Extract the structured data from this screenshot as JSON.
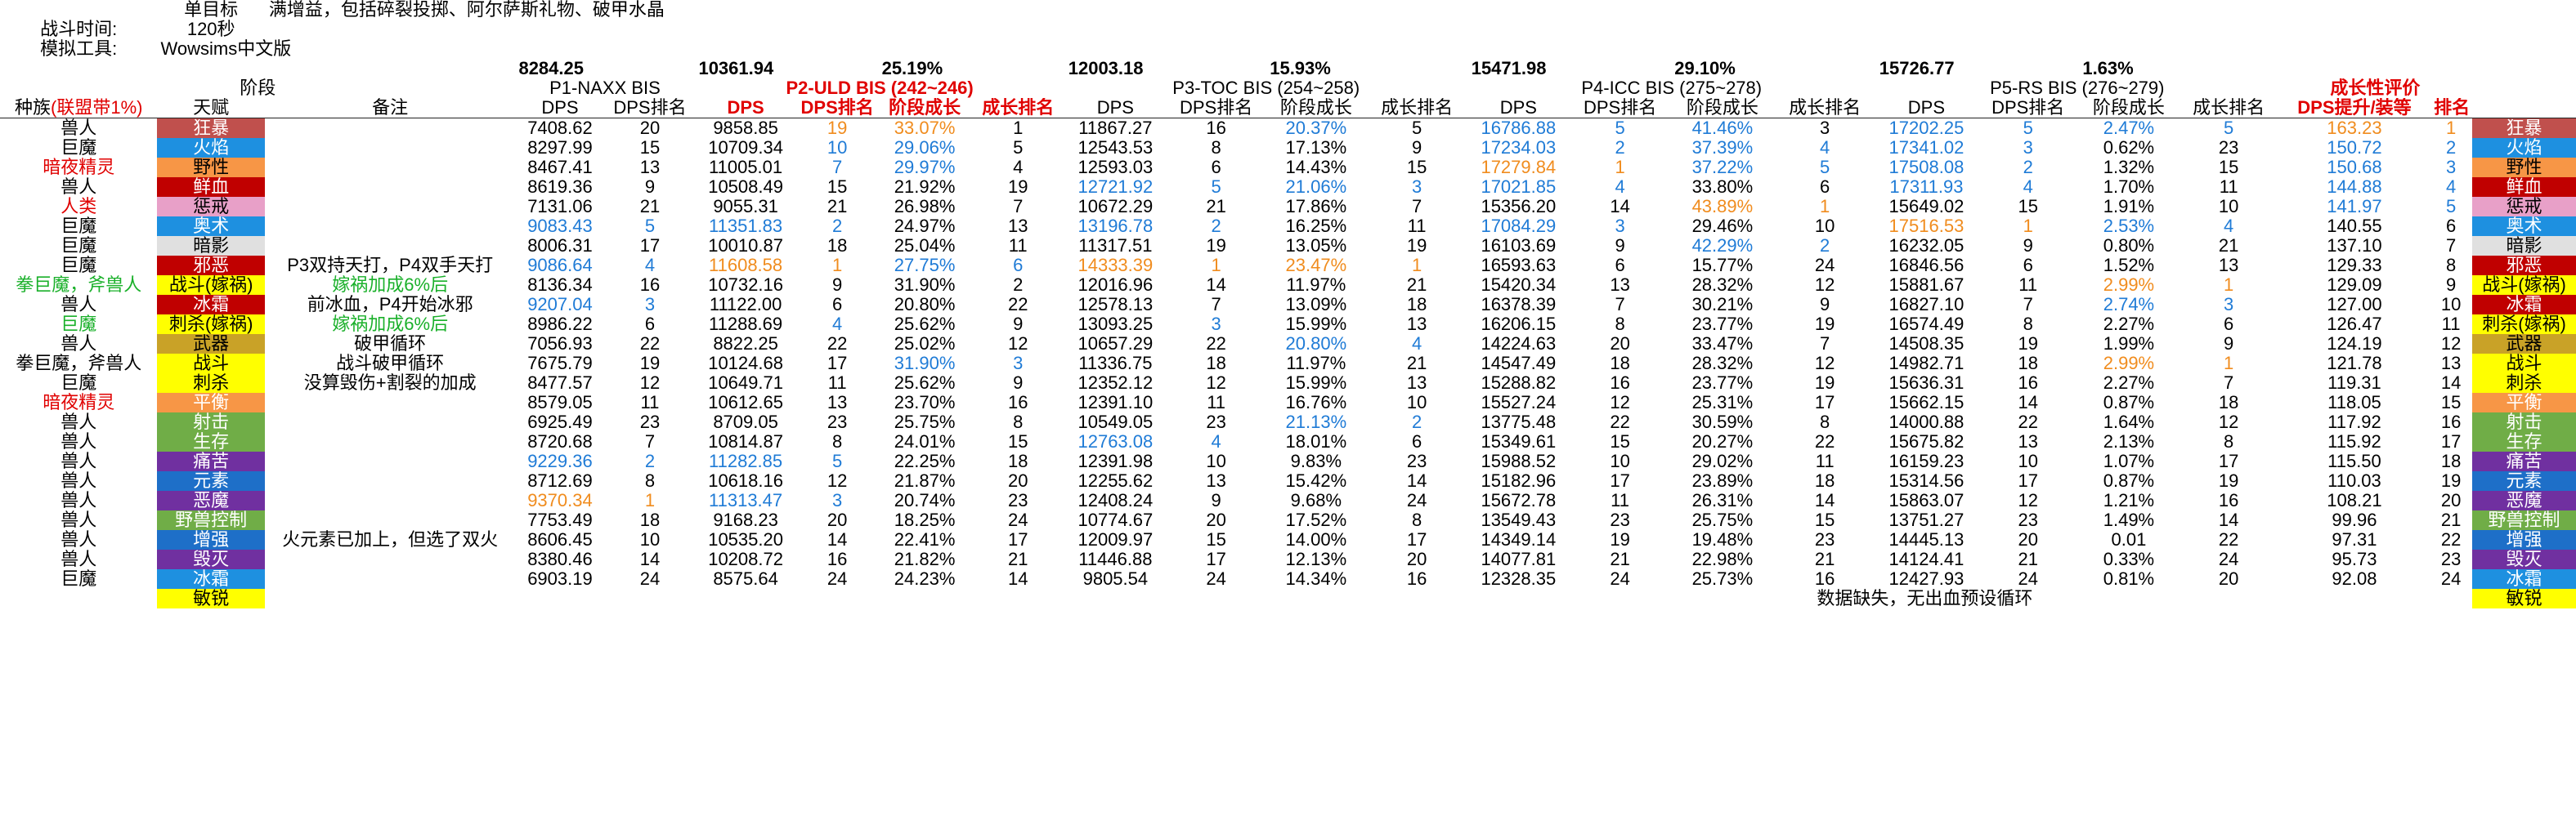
{
  "meta": {
    "target_label": "单目标",
    "target_value": "满增益，包括碎裂投掷、阿尔萨斯礼物、破甲水晶",
    "time_label": "战斗时间:",
    "time_value": "120秒",
    "tool_label": "模拟工具:",
    "tool_value": "Wowsims中文版"
  },
  "summary": [
    "8284.25",
    "10361.94",
    "25.19%",
    "12003.18",
    "15.93%",
    "15471.98",
    "29.10%",
    "15726.77",
    "1.63%"
  ],
  "headers": {
    "stage": "阶段",
    "p1": "P1-NAXX BIS",
    "p2": "P2-ULD BIS (242~246)",
    "p3": "P3-TOC BIS  (254~258)",
    "p4": "P4-ICC BIS (275~278)",
    "p5": "P5-RS BIS (276~279)",
    "growth": "成长性评价",
    "race_prefix": "种族",
    "race_suffix": "(联盟带1%)",
    "talent": "天赋",
    "notes": "备注",
    "dps": "DPS",
    "dps_rank": "DPS排名",
    "stage_growth": "阶段成长",
    "growth_rank": "成长排名",
    "dps_per_gear": "DPS提升/装等",
    "rank": "排名"
  },
  "colors": {
    "red": "#e00000",
    "blue": "#1f7bd6",
    "orange": "#f08c1e",
    "green": "#1ab02a",
    "狂暴": "#c0504d",
    "火焰": "#1e90e0",
    "野性": "#f79646",
    "鲜血": "#c00000",
    "惩戒": "#e8a0c8",
    "奥术": "#1e90e0",
    "暗影": "#e0e0e0",
    "邪恶": "#c00000",
    "战斗(嫁祸)": "#ffff00",
    "冰霜": "#c00000",
    "刺杀(嫁祸)": "#ffff00",
    "武器": "#c9a227",
    "战斗": "#ffff00",
    "刺杀": "#ffff00",
    "平衡": "#f79646",
    "射击": "#70ad47",
    "生存": "#70ad47",
    "痛苦": "#7030a0",
    "元素": "#1e6fc8",
    "恶魔": "#7030a0",
    "野兽控制": "#70ad47",
    "增强": "#1e6fc8",
    "毁灭": "#7030a0",
    "冰霜2": "#1e90e0",
    "敏锐": "#ffff00"
  },
  "rows": [
    {
      "race": "兽人",
      "race_c": "",
      "talent": "狂暴",
      "tk": "狂暴",
      "note": "",
      "note_c": "",
      "p1": [
        "7408.62",
        "20"
      ],
      "p2": [
        "9858.85",
        "19",
        "33.07%",
        "1"
      ],
      "p3": [
        "11867.27",
        "16",
        "20.37%",
        "5"
      ],
      "p4": [
        "16786.88",
        "5",
        "41.46%",
        "3"
      ],
      "p5": [
        "17202.25",
        "5",
        "2.47%",
        "5"
      ],
      "g": [
        "163.23",
        "1"
      ],
      "c": {
        "p2g": "orange",
        "p2r": "orange",
        "p3g": "blue",
        "p4d": "blue",
        "p4r": "blue",
        "p4g": "blue",
        "p5d": "blue",
        "p5r": "blue",
        "p5g": "blue",
        "p5gr": "blue",
        "gv": "orange",
        "gr": "orange"
      }
    },
    {
      "race": "巨魔",
      "race_c": "",
      "talent": "火焰",
      "tk": "火焰",
      "note": "",
      "note_c": "",
      "p1": [
        "8297.99",
        "15"
      ],
      "p2": [
        "10709.34",
        "10",
        "29.06%",
        "5"
      ],
      "p3": [
        "12543.53",
        "8",
        "17.13%",
        "9"
      ],
      "p4": [
        "17234.03",
        "2",
        "37.39%",
        "4"
      ],
      "p5": [
        "17341.02",
        "3",
        "0.62%",
        "23"
      ],
      "g": [
        "150.72",
        "2"
      ],
      "c": {
        "p2g": "blue",
        "p2r": "blue",
        "p4d": "blue",
        "p4r": "blue",
        "p4g": "blue",
        "p4gr": "blue",
        "p5d": "blue",
        "p5r": "blue",
        "gv": "blue",
        "gr": "blue"
      }
    },
    {
      "race": "暗夜精灵",
      "race_c": "red",
      "talent": "野性",
      "tk": "野性",
      "note": "",
      "note_c": "",
      "p1": [
        "8467.41",
        "13"
      ],
      "p2": [
        "11005.01",
        "7",
        "29.97%",
        "4"
      ],
      "p3": [
        "12593.03",
        "6",
        "14.43%",
        "15"
      ],
      "p4": [
        "17279.84",
        "1",
        "37.22%",
        "5"
      ],
      "p5": [
        "17508.08",
        "2",
        "1.32%",
        "15"
      ],
      "g": [
        "150.68",
        "3"
      ],
      "c": {
        "p2g": "blue",
        "p2r": "blue",
        "p4d": "orange",
        "p4r": "orange",
        "p4g": "blue",
        "p4gr": "blue",
        "p5d": "blue",
        "p5r": "blue",
        "gv": "blue",
        "gr": "blue"
      }
    },
    {
      "race": "兽人",
      "race_c": "",
      "talent": "鲜血",
      "tk": "鲜血",
      "note": "",
      "note_c": "",
      "p1": [
        "8619.36",
        "9"
      ],
      "p2": [
        "10508.49",
        "15",
        "21.92%",
        "19"
      ],
      "p3": [
        "12721.92",
        "5",
        "21.06%",
        "3"
      ],
      "p4": [
        "17021.85",
        "4",
        "33.80%",
        "6"
      ],
      "p5": [
        "17311.93",
        "4",
        "1.70%",
        "11"
      ],
      "g": [
        "144.88",
        "4"
      ],
      "c": {
        "p3d": "blue",
        "p3r": "blue",
        "p3g": "blue",
        "p3gr": "blue",
        "p4d": "blue",
        "p4r": "blue",
        "p5d": "blue",
        "p5r": "blue",
        "gv": "blue",
        "gr": "blue"
      }
    },
    {
      "race": "人类",
      "race_c": "red",
      "talent": "惩戒",
      "tk": "惩戒",
      "note": "",
      "note_c": "",
      "p1": [
        "7131.06",
        "21"
      ],
      "p2": [
        "9055.31",
        "21",
        "26.98%",
        "7"
      ],
      "p3": [
        "10672.29",
        "21",
        "17.86%",
        "7"
      ],
      "p4": [
        "15356.20",
        "14",
        "43.89%",
        "1"
      ],
      "p5": [
        "15649.02",
        "15",
        "1.91%",
        "10"
      ],
      "g": [
        "141.97",
        "5"
      ],
      "c": {
        "p4g": "orange",
        "p4gr": "orange",
        "gv": "blue",
        "gr": "blue"
      }
    },
    {
      "race": "巨魔",
      "race_c": "",
      "talent": "奥术",
      "tk": "奥术",
      "note": "",
      "note_c": "",
      "p1": [
        "9083.43",
        "5"
      ],
      "p2": [
        "11351.83",
        "2",
        "24.97%",
        "13"
      ],
      "p3": [
        "13196.78",
        "2",
        "16.25%",
        "11"
      ],
      "p4": [
        "17084.29",
        "3",
        "29.46%",
        "10"
      ],
      "p5": [
        "17516.53",
        "1",
        "2.53%",
        "4"
      ],
      "g": [
        "140.55",
        "6"
      ],
      "c": {
        "p1d": "blue",
        "p1r": "blue",
        "p2d": "blue",
        "p2r": "blue",
        "p3d": "blue",
        "p3r": "blue",
        "p4d": "blue",
        "p4r": "blue",
        "p5d": "orange",
        "p5r": "orange",
        "p5g": "blue",
        "p5gr": "blue"
      }
    },
    {
      "race": "巨魔",
      "race_c": "",
      "talent": "暗影",
      "tk": "暗影",
      "note": "",
      "note_c": "",
      "p1": [
        "8006.31",
        "17"
      ],
      "p2": [
        "10010.87",
        "18",
        "25.04%",
        "11"
      ],
      "p3": [
        "11317.51",
        "19",
        "13.05%",
        "19"
      ],
      "p4": [
        "16103.69",
        "9",
        "42.29%",
        "2"
      ],
      "p5": [
        "16232.05",
        "9",
        "0.80%",
        "21"
      ],
      "g": [
        "137.10",
        "7"
      ],
      "c": {
        "p4g": "blue",
        "p4gr": "blue"
      }
    },
    {
      "race": "巨魔",
      "race_c": "",
      "talent": "邪恶",
      "tk": "邪恶",
      "note": "P3双持天打，P4双手天打",
      "note_c": "",
      "p1": [
        "9086.64",
        "4"
      ],
      "p2": [
        "11608.58",
        "1",
        "27.75%",
        "6"
      ],
      "p3": [
        "14333.39",
        "1",
        "23.47%",
        "1"
      ],
      "p4": [
        "16593.63",
        "6",
        "15.77%",
        "24"
      ],
      "p5": [
        "16846.56",
        "6",
        "1.52%",
        "13"
      ],
      "g": [
        "129.33",
        "8"
      ],
      "c": {
        "p1d": "blue",
        "p1r": "blue",
        "p2d": "orange",
        "p2r": "orange",
        "p2g": "blue",
        "p2gr": "blue",
        "p3d": "orange",
        "p3r": "orange",
        "p3g": "orange",
        "p3gr": "orange"
      }
    },
    {
      "race": "拳巨魔，斧兽人",
      "race_c": "green",
      "talent": "战斗(嫁祸)",
      "tk": "战斗(嫁祸)",
      "note": "嫁祸加成6%后",
      "note_c": "green",
      "p1": [
        "8136.34",
        "16"
      ],
      "p2": [
        "10732.16",
        "9",
        "31.90%",
        "2"
      ],
      "p3": [
        "12016.96",
        "14",
        "11.97%",
        "21"
      ],
      "p4": [
        "15420.34",
        "13",
        "28.32%",
        "12"
      ],
      "p5": [
        "15881.67",
        "11",
        "2.99%",
        "1"
      ],
      "g": [
        "129.09",
        "9"
      ],
      "c": {
        "p5g": "orange",
        "p5gr": "orange"
      }
    },
    {
      "race": "兽人",
      "race_c": "",
      "talent": "冰霜",
      "tk": "冰霜",
      "note": "前冰血，P4开始冰邪",
      "note_c": "",
      "p1": [
        "9207.04",
        "3"
      ],
      "p2": [
        "11122.00",
        "6",
        "20.80%",
        "22"
      ],
      "p3": [
        "12578.13",
        "7",
        "13.09%",
        "18"
      ],
      "p4": [
        "16378.39",
        "7",
        "30.21%",
        "9"
      ],
      "p5": [
        "16827.10",
        "7",
        "2.74%",
        "3"
      ],
      "g": [
        "127.00",
        "10"
      ],
      "c": {
        "p1d": "blue",
        "p1r": "blue",
        "p5g": "blue",
        "p5gr": "blue"
      }
    },
    {
      "race": "巨魔",
      "race_c": "green",
      "talent": "刺杀(嫁祸)",
      "tk": "刺杀(嫁祸)",
      "note": "嫁祸加成6%后",
      "note_c": "green",
      "p1": [
        "8986.22",
        "6"
      ],
      "p2": [
        "11288.69",
        "4",
        "25.62%",
        "9"
      ],
      "p3": [
        "13093.25",
        "3",
        "15.99%",
        "13"
      ],
      "p4": [
        "16206.15",
        "8",
        "23.77%",
        "19"
      ],
      "p5": [
        "16574.49",
        "8",
        "2.27%",
        "6"
      ],
      "g": [
        "126.47",
        "11"
      ],
      "c": {
        "p2r": "blue",
        "p3r": "blue"
      }
    },
    {
      "race": "兽人",
      "race_c": "",
      "talent": "武器",
      "tk": "武器",
      "note": "破甲循环",
      "note_c": "",
      "p1": [
        "7056.93",
        "22"
      ],
      "p2": [
        "8822.25",
        "22",
        "25.02%",
        "12"
      ],
      "p3": [
        "10657.29",
        "22",
        "20.80%",
        "4"
      ],
      "p4": [
        "14224.63",
        "20",
        "33.47%",
        "7"
      ],
      "p5": [
        "14508.35",
        "19",
        "1.99%",
        "9"
      ],
      "g": [
        "124.19",
        "12"
      ],
      "c": {
        "p3g": "blue",
        "p3gr": "blue"
      }
    },
    {
      "race": "拳巨魔，斧兽人",
      "race_c": "",
      "talent": "战斗",
      "tk": "战斗",
      "note": "战斗破甲循环",
      "note_c": "",
      "p1": [
        "7675.79",
        "19"
      ],
      "p2": [
        "10124.68",
        "17",
        "31.90%",
        "3"
      ],
      "p3": [
        "11336.75",
        "18",
        "11.97%",
        "21"
      ],
      "p4": [
        "14547.49",
        "18",
        "28.32%",
        "12"
      ],
      "p5": [
        "14982.71",
        "18",
        "2.99%",
        "1"
      ],
      "g": [
        "121.78",
        "13"
      ],
      "c": {
        "p2g": "blue",
        "p2gr": "blue",
        "p5g": "orange",
        "p5gr": "orange"
      }
    },
    {
      "race": "巨魔",
      "race_c": "",
      "talent": "刺杀",
      "tk": "刺杀",
      "note": "没算毁伤+割裂的加成",
      "note_c": "",
      "p1": [
        "8477.57",
        "12"
      ],
      "p2": [
        "10649.71",
        "11",
        "25.62%",
        "9"
      ],
      "p3": [
        "12352.12",
        "12",
        "15.99%",
        "13"
      ],
      "p4": [
        "15288.82",
        "16",
        "23.77%",
        "19"
      ],
      "p5": [
        "15636.31",
        "16",
        "2.27%",
        "7"
      ],
      "g": [
        "119.31",
        "14"
      ],
      "c": {}
    },
    {
      "race": "暗夜精灵",
      "race_c": "red",
      "talent": "平衡",
      "tk": "平衡",
      "note": "",
      "note_c": "",
      "p1": [
        "8579.05",
        "11"
      ],
      "p2": [
        "10612.65",
        "13",
        "23.70%",
        "16"
      ],
      "p3": [
        "12391.10",
        "11",
        "16.76%",
        "10"
      ],
      "p4": [
        "15527.24",
        "12",
        "25.31%",
        "17"
      ],
      "p5": [
        "15662.15",
        "14",
        "0.87%",
        "18"
      ],
      "g": [
        "118.05",
        "15"
      ],
      "c": {}
    },
    {
      "race": "兽人",
      "race_c": "",
      "talent": "射击",
      "tk": "射击",
      "note": "",
      "note_c": "",
      "p1": [
        "6925.49",
        "23"
      ],
      "p2": [
        "8709.05",
        "23",
        "25.75%",
        "8"
      ],
      "p3": [
        "10549.05",
        "23",
        "21.13%",
        "2"
      ],
      "p4": [
        "13775.48",
        "22",
        "30.59%",
        "8"
      ],
      "p5": [
        "14000.88",
        "22",
        "1.64%",
        "12"
      ],
      "g": [
        "117.92",
        "16"
      ],
      "c": {
        "p3g": "blue",
        "p3gr": "blue"
      }
    },
    {
      "race": "兽人",
      "race_c": "",
      "talent": "生存",
      "tk": "生存",
      "note": "",
      "note_c": "",
      "p1": [
        "8720.68",
        "7"
      ],
      "p2": [
        "10814.87",
        "8",
        "24.01%",
        "15"
      ],
      "p3": [
        "12763.08",
        "4",
        "18.01%",
        "6"
      ],
      "p4": [
        "15349.61",
        "15",
        "20.27%",
        "22"
      ],
      "p5": [
        "15675.82",
        "13",
        "2.13%",
        "8"
      ],
      "g": [
        "115.92",
        "17"
      ],
      "c": {
        "p3d": "blue",
        "p3r": "blue"
      }
    },
    {
      "race": "兽人",
      "race_c": "",
      "talent": "痛苦",
      "tk": "痛苦",
      "note": "",
      "note_c": "",
      "p1": [
        "9229.36",
        "2"
      ],
      "p2": [
        "11282.85",
        "5",
        "22.25%",
        "18"
      ],
      "p3": [
        "12391.98",
        "10",
        "9.83%",
        "23"
      ],
      "p4": [
        "15988.52",
        "10",
        "29.02%",
        "11"
      ],
      "p5": [
        "16159.23",
        "10",
        "1.07%",
        "17"
      ],
      "g": [
        "115.50",
        "18"
      ],
      "c": {
        "p1d": "blue",
        "p1r": "blue",
        "p2d": "blue",
        "p2r": "blue"
      }
    },
    {
      "race": "兽人",
      "race_c": "",
      "talent": "元素",
      "tk": "元素",
      "note": "",
      "note_c": "",
      "p1": [
        "8712.69",
        "8"
      ],
      "p2": [
        "10618.16",
        "12",
        "21.87%",
        "20"
      ],
      "p3": [
        "12255.62",
        "13",
        "15.42%",
        "14"
      ],
      "p4": [
        "15182.96",
        "17",
        "23.89%",
        "18"
      ],
      "p5": [
        "15314.56",
        "17",
        "0.87%",
        "19"
      ],
      "g": [
        "110.03",
        "19"
      ],
      "c": {}
    },
    {
      "race": "兽人",
      "race_c": "",
      "talent": "恶魔",
      "tk": "恶魔",
      "note": "",
      "note_c": "",
      "p1": [
        "9370.34",
        "1"
      ],
      "p2": [
        "11313.47",
        "3",
        "20.74%",
        "23"
      ],
      "p3": [
        "12408.24",
        "9",
        "9.68%",
        "24"
      ],
      "p4": [
        "15672.78",
        "11",
        "26.31%",
        "14"
      ],
      "p5": [
        "15863.07",
        "12",
        "1.21%",
        "16"
      ],
      "g": [
        "108.21",
        "20"
      ],
      "c": {
        "p1d": "orange",
        "p1r": "orange",
        "p2d": "blue",
        "p2r": "blue"
      }
    },
    {
      "race": "兽人",
      "race_c": "",
      "talent": "野兽控制",
      "tk": "野兽控制",
      "note": "",
      "note_c": "",
      "p1": [
        "7753.49",
        "18"
      ],
      "p2": [
        "9168.23",
        "20",
        "18.25%",
        "24"
      ],
      "p3": [
        "10774.67",
        "20",
        "17.52%",
        "8"
      ],
      "p4": [
        "13549.43",
        "23",
        "25.75%",
        "15"
      ],
      "p5": [
        "13751.27",
        "23",
        "1.49%",
        "14"
      ],
      "g": [
        "99.96",
        "21"
      ],
      "c": {}
    },
    {
      "race": "兽人",
      "race_c": "",
      "talent": "增强",
      "tk": "增强",
      "note": "火元素已加上，但选了双火",
      "note_c": "",
      "p1": [
        "8606.45",
        "10"
      ],
      "p2": [
        "10535.20",
        "14",
        "22.41%",
        "17"
      ],
      "p3": [
        "12009.97",
        "15",
        "14.00%",
        "17"
      ],
      "p4": [
        "14349.14",
        "19",
        "19.48%",
        "23"
      ],
      "p5": [
        "14445.13",
        "20",
        "0.01",
        "22"
      ],
      "g": [
        "97.31",
        "22"
      ],
      "c": {}
    },
    {
      "race": "兽人",
      "race_c": "",
      "talent": "毁灭",
      "tk": "毁灭",
      "note": "",
      "note_c": "",
      "p1": [
        "8380.46",
        "14"
      ],
      "p2": [
        "10208.72",
        "16",
        "21.82%",
        "21"
      ],
      "p3": [
        "11446.88",
        "17",
        "12.13%",
        "20"
      ],
      "p4": [
        "14077.81",
        "21",
        "22.98%",
        "21"
      ],
      "p5": [
        "14124.41",
        "21",
        "0.33%",
        "24"
      ],
      "g": [
        "95.73",
        "23"
      ],
      "c": {}
    },
    {
      "race": "巨魔",
      "race_c": "",
      "talent": "冰霜",
      "tk": "冰霜2",
      "note": "",
      "note_c": "",
      "p1": [
        "6903.19",
        "24"
      ],
      "p2": [
        "8575.64",
        "24",
        "24.23%",
        "14"
      ],
      "p3": [
        "9805.54",
        "24",
        "14.34%",
        "16"
      ],
      "p4": [
        "12328.35",
        "24",
        "25.73%",
        "16"
      ],
      "p5": [
        "12427.93",
        "24",
        "0.81%",
        "20"
      ],
      "g": [
        "92.08",
        "24"
      ],
      "c": {}
    }
  ],
  "last_row": {
    "talent": "敏锐",
    "tk": "敏锐",
    "note": "数据缺失，无出血预设循环"
  }
}
